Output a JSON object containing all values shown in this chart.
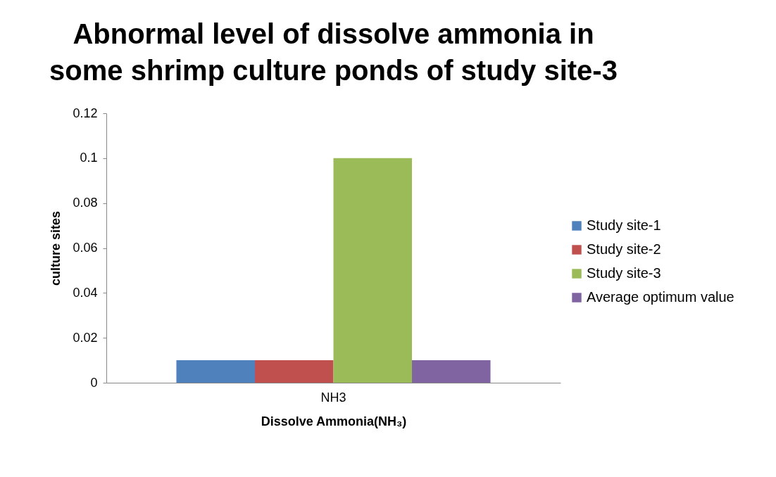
{
  "chart_data": {
    "type": "bar",
    "title": "Abnormal level of dissolve ammonia in some shrimp culture ponds of study site-3",
    "xlabel": "Dissolve Ammonia(NH₃)",
    "ylabel": "culture sites",
    "categories": [
      "NH3"
    ],
    "series": [
      {
        "name": "Study site-1",
        "color": "#4f81bd",
        "values": [
          0.01
        ]
      },
      {
        "name": "Study site-2",
        "color": "#c0504d",
        "values": [
          0.01
        ]
      },
      {
        "name": "Study site-3",
        "color": "#9bbb59",
        "values": [
          0.1
        ]
      },
      {
        "name": "Average optimum value",
        "color": "#8064a2",
        "values": [
          0.01
        ]
      }
    ],
    "ylim": [
      0,
      0.12
    ],
    "yticks": [
      0,
      0.02,
      0.04,
      0.06,
      0.08,
      0.1,
      0.12
    ],
    "grid": false,
    "legend": "right"
  }
}
